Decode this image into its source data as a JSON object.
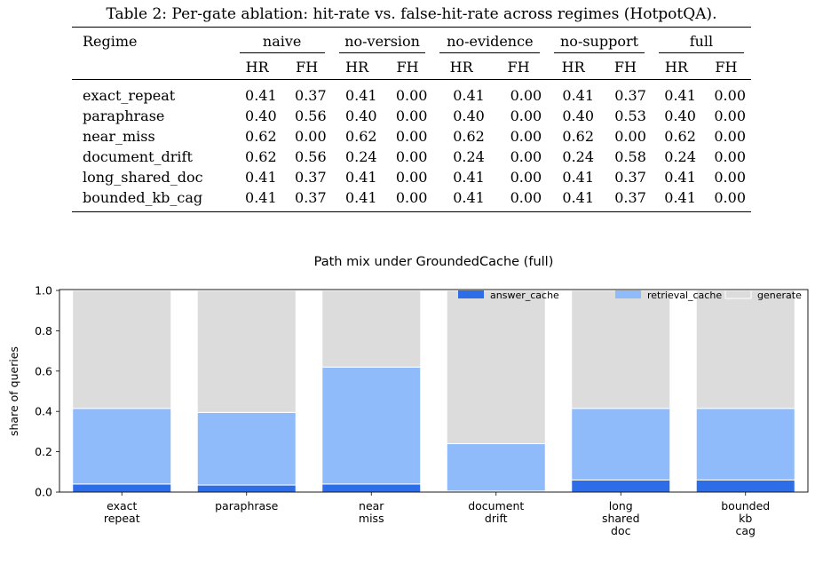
{
  "table": {
    "caption": "Table 2: Per-gate ablation: hit-rate vs. false-hit-rate across regimes (HotpotQA).",
    "regime_header": "Regime",
    "groups": [
      "naive",
      "no-version",
      "no-evidence",
      "no-support",
      "full"
    ],
    "subheaders": [
      "HR",
      "FH",
      "HR",
      "FH",
      "HR",
      "FH",
      "HR",
      "FH",
      "HR",
      "FH"
    ],
    "rows": [
      {
        "regime": "exact_repeat",
        "values": [
          "0.41",
          "0.37",
          "0.41",
          "0.00",
          "0.41",
          "0.00",
          "0.41",
          "0.37",
          "0.41",
          "0.00"
        ]
      },
      {
        "regime": "paraphrase",
        "values": [
          "0.40",
          "0.56",
          "0.40",
          "0.00",
          "0.40",
          "0.00",
          "0.40",
          "0.53",
          "0.40",
          "0.00"
        ]
      },
      {
        "regime": "near_miss",
        "values": [
          "0.62",
          "0.00",
          "0.62",
          "0.00",
          "0.62",
          "0.00",
          "0.62",
          "0.00",
          "0.62",
          "0.00"
        ]
      },
      {
        "regime": "document_drift",
        "values": [
          "0.62",
          "0.56",
          "0.24",
          "0.00",
          "0.24",
          "0.00",
          "0.24",
          "0.58",
          "0.24",
          "0.00"
        ]
      },
      {
        "regime": "long_shared_doc",
        "values": [
          "0.41",
          "0.37",
          "0.41",
          "0.00",
          "0.41",
          "0.00",
          "0.41",
          "0.37",
          "0.41",
          "0.00"
        ]
      },
      {
        "regime": "bounded_kb_cag",
        "values": [
          "0.41",
          "0.37",
          "0.41",
          "0.00",
          "0.41",
          "0.00",
          "0.41",
          "0.37",
          "0.41",
          "0.00"
        ]
      }
    ]
  },
  "chart_data": {
    "type": "bar",
    "stacked": true,
    "title": "Path mix under GroundedCache (full)",
    "xlabel": "",
    "ylabel": "share of queries",
    "ylim": [
      0,
      1.0
    ],
    "yticks": [
      "0.0",
      "0.2",
      "0.4",
      "0.6",
      "0.8",
      "1.0"
    ],
    "categories": [
      "exact\nrepeat",
      "paraphrase",
      "near\nmiss",
      "document\ndrift",
      "long\nshared\ndoc",
      "bounded\nkb\ncag"
    ],
    "series": [
      {
        "name": "answer_cache",
        "color": "#2d6de8",
        "values": [
          0.04,
          0.035,
          0.04,
          0.005,
          0.06,
          0.06
        ]
      },
      {
        "name": "retrieval_cache",
        "color": "#8fbbfb",
        "values": [
          0.375,
          0.36,
          0.58,
          0.235,
          0.355,
          0.355
        ]
      },
      {
        "name": "generate",
        "color": "#dcdcdc",
        "values": [
          0.585,
          0.605,
          0.38,
          0.76,
          0.585,
          0.585
        ]
      }
    ],
    "grid": false,
    "legend_position": "top-right"
  }
}
